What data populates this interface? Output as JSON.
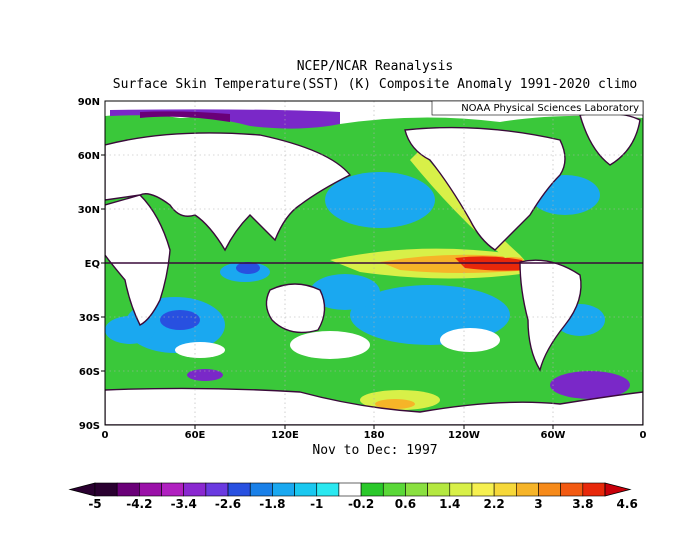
{
  "title_line1": "NCEP/NCAR Reanalysis",
  "title_line2": "Surface Skin Temperature(SST) (K) Composite Anomaly 1991-2020 climo",
  "credit": "NOAA Physical Sciences Laboratory",
  "period": "Nov to Dec: 1997",
  "lat_labels": [
    "90N",
    "60N",
    "30N",
    "EQ",
    "30S",
    "60S",
    "90S"
  ],
  "lon_labels": [
    "0",
    "60E",
    "120E",
    "180",
    "120W",
    "60W",
    "0"
  ],
  "colorbar": {
    "tick_labels": [
      "-5",
      "-4.2",
      "-3.4",
      "-2.6",
      "-1.8",
      "-1",
      "-0.2",
      "0.6",
      "1.4",
      "2.2",
      "3",
      "3.8",
      "4.6"
    ],
    "colors": [
      "#2a0030",
      "#6a0078",
      "#9a10a8",
      "#b020c0",
      "#8a28d0",
      "#6a3ae0",
      "#2850e0",
      "#1a80e8",
      "#1aa8f0",
      "#1ac8f0",
      "#2ae8f0",
      "#ffffff",
      "#2ac82a",
      "#5ad838",
      "#8ae040",
      "#b4e840",
      "#d8f048",
      "#f6f050",
      "#f6d83a",
      "#f6b428",
      "#f68a1a",
      "#f25a12",
      "#e8280a"
    ],
    "left_arrow_color": "#2a0030",
    "right_arrow_color": "#c8000a"
  },
  "map_colors": {
    "land": "#ffffff",
    "coast": "#3a0a3a",
    "cool": "#1aa8f0",
    "cold": "#2850e0",
    "very_cold": "#7a28c8",
    "mild": "#3ac83a",
    "neutral": "#ffffff",
    "warm": "#d8f048",
    "hot": "#f6b428",
    "very_hot": "#e8280a"
  }
}
